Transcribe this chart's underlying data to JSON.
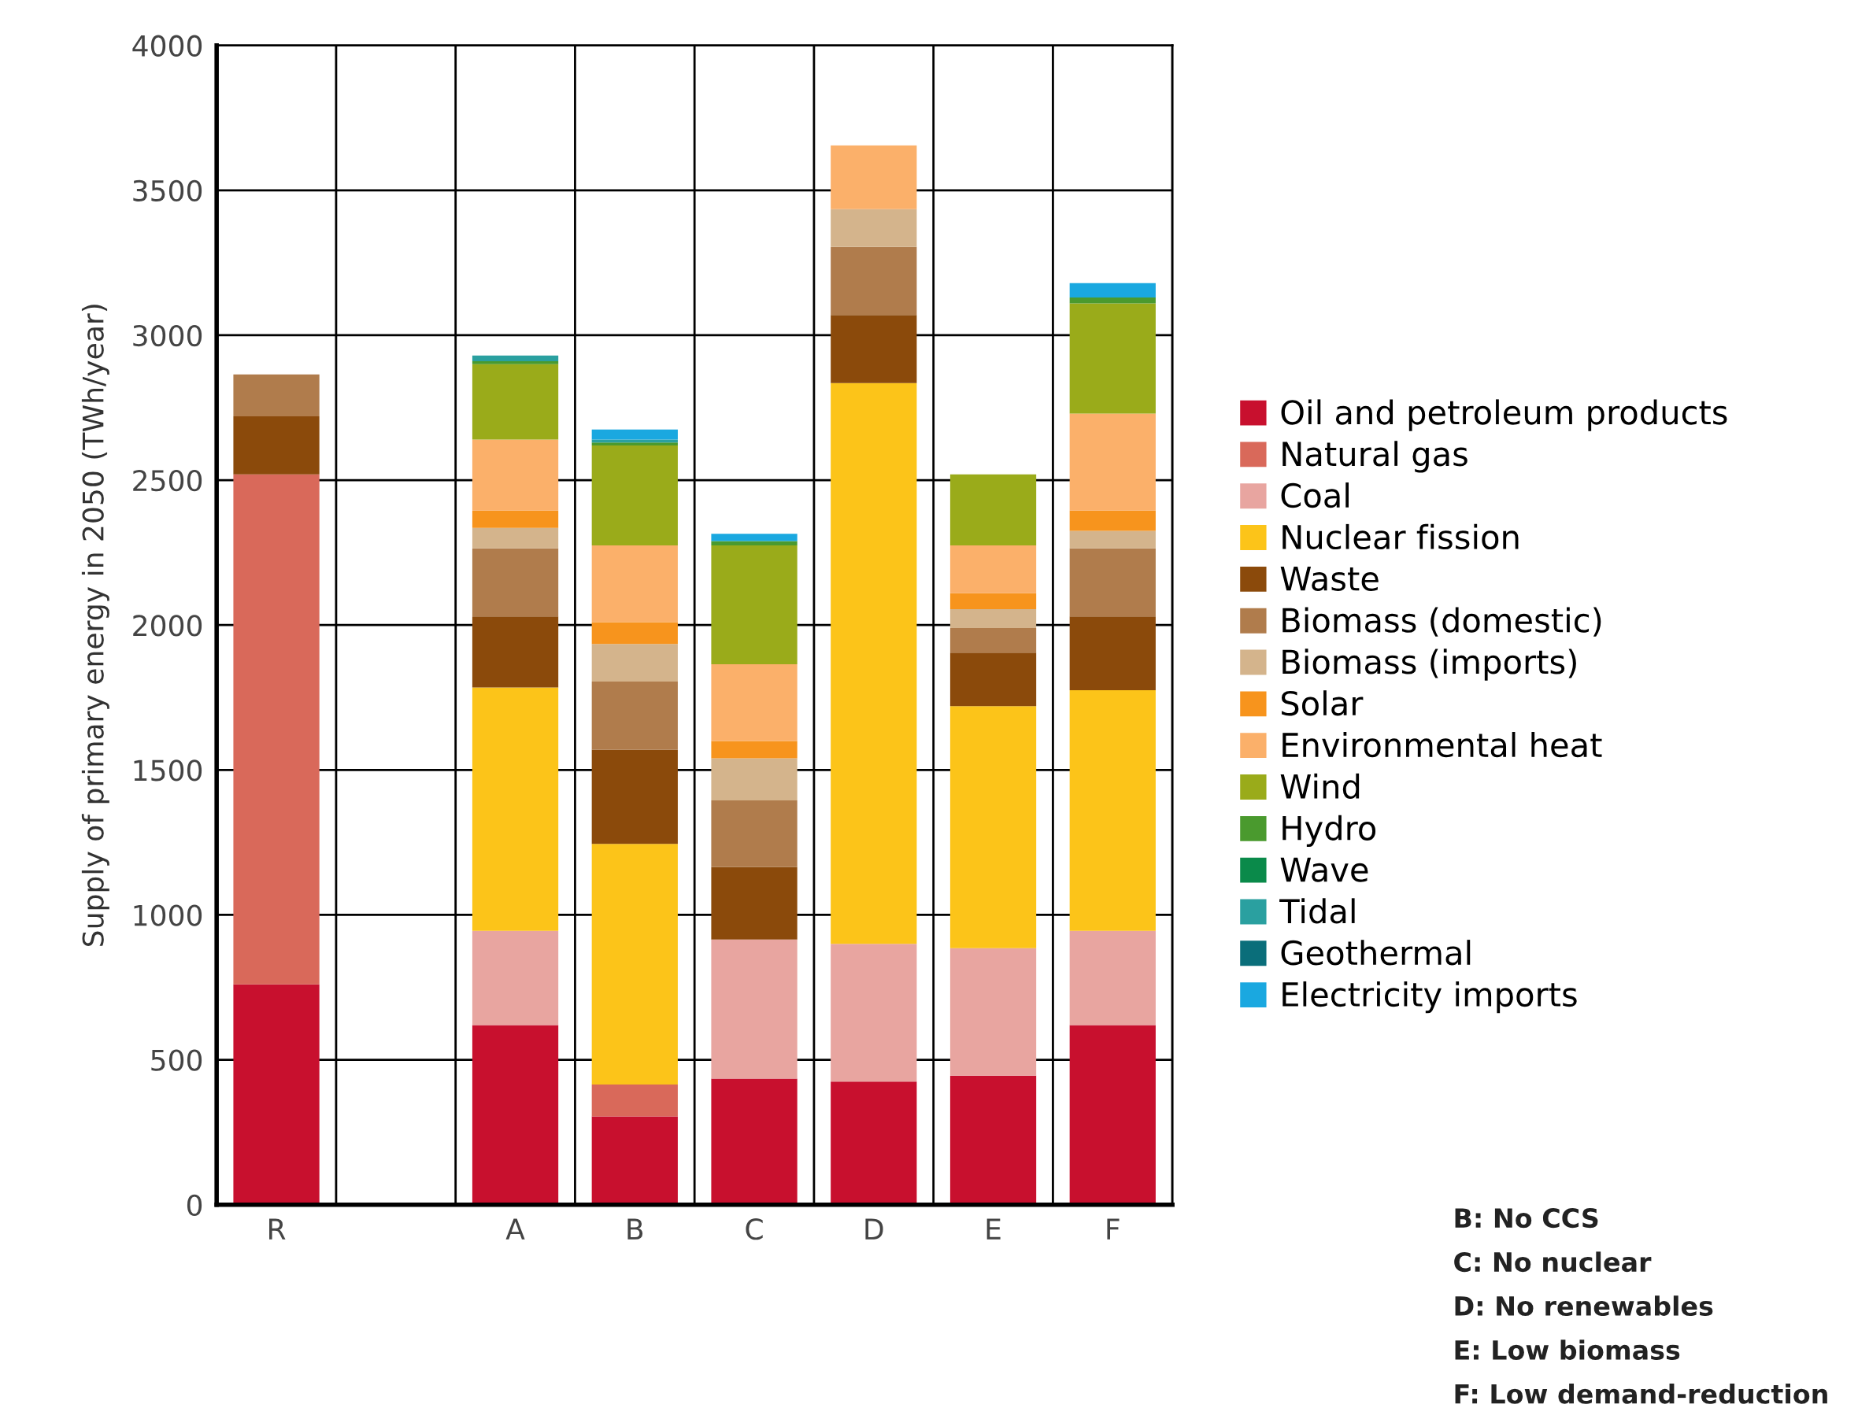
{
  "chart_data": {
    "type": "bar",
    "stacked": true,
    "ylabel": "Supply of primary energy in 2050 (TWh/year)",
    "categories": [
      "R",
      null,
      "A",
      "B",
      "C",
      "D",
      "E",
      "F"
    ],
    "ylim": [
      0,
      4000
    ],
    "yticks": [
      0,
      500,
      1000,
      1500,
      2000,
      2500,
      3000,
      3500,
      4000
    ],
    "grid": true,
    "legend": "right",
    "series": [
      {
        "name": "Oil and petroleum products",
        "color": "#c8102e",
        "values": [
          760,
          null,
          620,
          305,
          435,
          425,
          445,
          620
        ]
      },
      {
        "name": "Natural gas",
        "color": "#d9695a",
        "values": [
          1760,
          null,
          0,
          110,
          0,
          0,
          0,
          0
        ]
      },
      {
        "name": "Coal",
        "color": "#e8a5a0",
        "values": [
          0,
          null,
          325,
          0,
          480,
          475,
          440,
          325
        ]
      },
      {
        "name": "Nuclear fission",
        "color": "#fcc419",
        "values": [
          0,
          null,
          840,
          830,
          0,
          1935,
          835,
          830
        ]
      },
      {
        "name": "Waste",
        "color": "#8b4a0b",
        "values": [
          200,
          null,
          245,
          325,
          250,
          235,
          185,
          255
        ]
      },
      {
        "name": "Biomass (domestic)",
        "color": "#b07c4c",
        "values": [
          145,
          null,
          235,
          235,
          230,
          235,
          85,
          235
        ]
      },
      {
        "name": "Biomass (imports)",
        "color": "#d4b48c",
        "values": [
          0,
          null,
          70,
          130,
          145,
          130,
          65,
          60
        ]
      },
      {
        "name": "Solar",
        "color": "#f7941d",
        "values": [
          0,
          null,
          60,
          75,
          60,
          0,
          55,
          70
        ]
      },
      {
        "name": "Environmental heat",
        "color": "#fbb06a",
        "values": [
          0,
          null,
          245,
          265,
          265,
          220,
          165,
          335
        ]
      },
      {
        "name": "Wind",
        "color": "#9aab1a",
        "values": [
          0,
          null,
          260,
          345,
          410,
          0,
          245,
          380
        ]
      },
      {
        "name": "Hydro",
        "color": "#4a9a2e",
        "values": [
          0,
          null,
          10,
          10,
          15,
          0,
          0,
          20
        ]
      },
      {
        "name": "Wave",
        "color": "#0a8a4a",
        "values": [
          0,
          null,
          0,
          0,
          0,
          0,
          0,
          0
        ]
      },
      {
        "name": "Tidal",
        "color": "#2aa0a0",
        "values": [
          0,
          null,
          20,
          10,
          0,
          0,
          0,
          0
        ]
      },
      {
        "name": "Geothermal",
        "color": "#0a6e7a",
        "values": [
          0,
          null,
          0,
          0,
          0,
          0,
          0,
          0
        ]
      },
      {
        "name": "Electricity imports",
        "color": "#1aa8e0",
        "values": [
          0,
          null,
          0,
          35,
          25,
          0,
          0,
          50
        ]
      }
    ],
    "annotations": [
      "B: No CCS",
      "C: No nuclear",
      "D: No renewables",
      "E: Low biomass",
      "F: Low demand-reduction"
    ]
  }
}
